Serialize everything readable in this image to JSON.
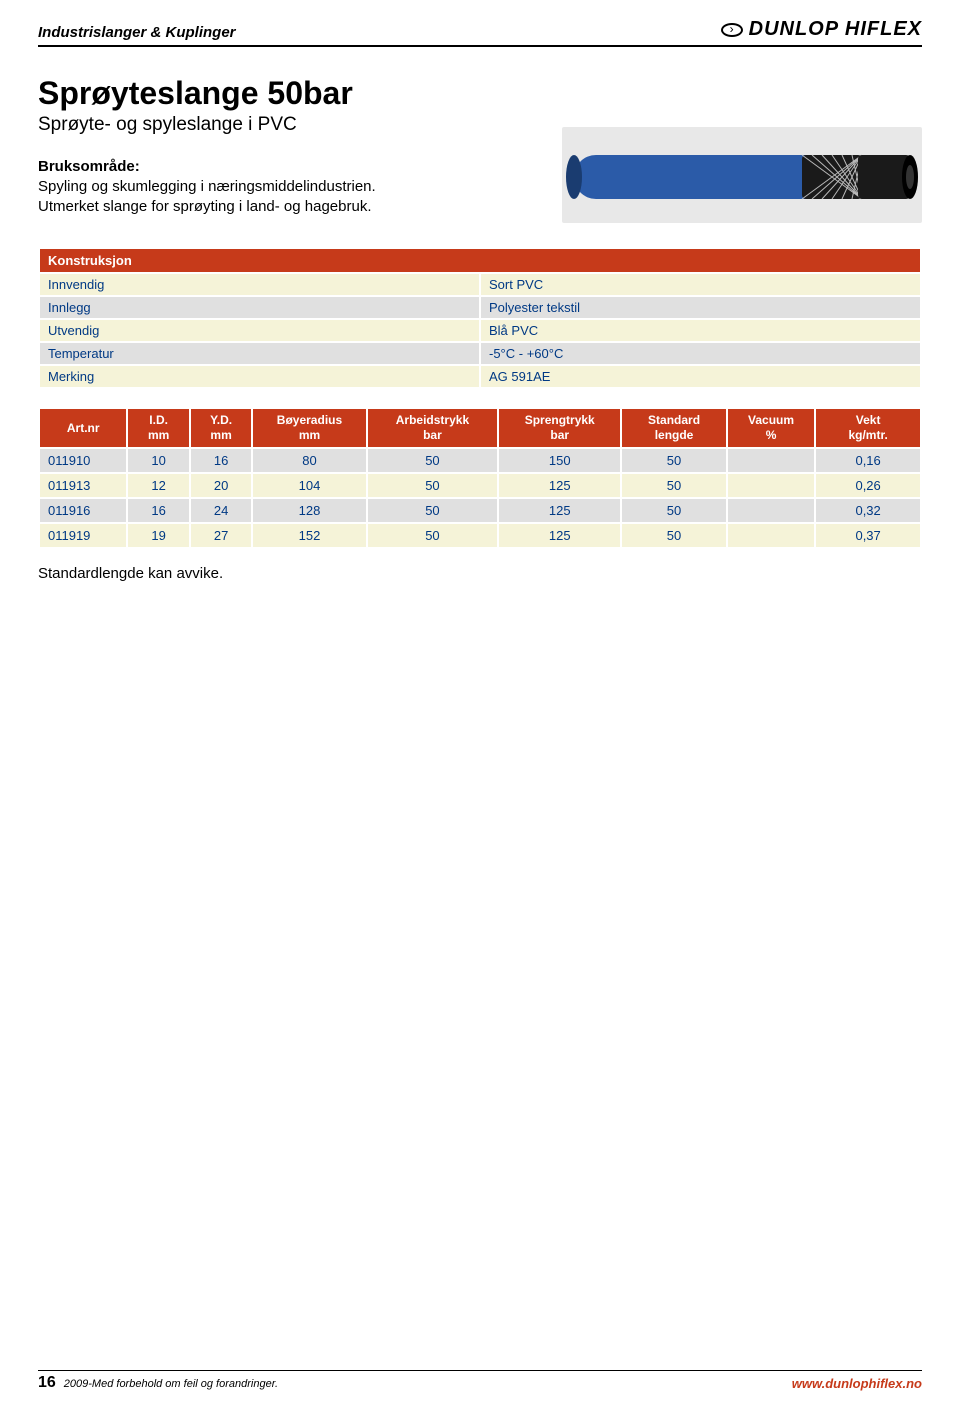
{
  "header": {
    "section": "Industrislanger & Kuplinger",
    "brand": "DUNLOP HIFLEX"
  },
  "title": "Sprøyteslange 50bar",
  "subtitle": "Sprøyte- og spyleslange i PVC",
  "usage_label": "Bruksområde:",
  "usage_text": "Spyling og skumlegging i næringsmiddelindustrien. Utmerket slange for sprøyting i land- og hagebruk.",
  "hose_graphic": {
    "outer_color": "#2b5ba8",
    "inner_color": "#1a1a1a",
    "mesh_color": "#b8b8b8",
    "bg": "#e8e8e8"
  },
  "construction": {
    "header": "Konstruksjon",
    "rows": [
      {
        "label": "Innvendig",
        "value": "Sort PVC",
        "cls": "row-a"
      },
      {
        "label": "Innlegg",
        "value": "Polyester tekstil",
        "cls": "row-b"
      },
      {
        "label": "Utvendig",
        "value": "Blå PVC",
        "cls": "row-a"
      },
      {
        "label": "Temperatur",
        "value": "-5°C - +60°C",
        "cls": "row-b"
      },
      {
        "label": "Merking",
        "value": "AG  591AE",
        "cls": "row-a"
      }
    ],
    "colors": {
      "header_bg": "#c63a1a",
      "header_fg": "#ffffff",
      "row_a_bg": "#f5f3d8",
      "row_b_bg": "#e0e0e0",
      "text": "#003984"
    }
  },
  "data": {
    "columns": [
      "Art.nr",
      "I.D.\nmm",
      "Y.D.\nmm",
      "Bøyeradius\nmm",
      "Arbeidstrykk\nbar",
      "Sprengtrykk\nbar",
      "Standard\nlengde",
      "Vacuum\n%",
      "Vekt\nkg/mtr."
    ],
    "col_widths": [
      "10%",
      "7%",
      "7%",
      "13%",
      "15%",
      "14%",
      "12%",
      "10%",
      "12%"
    ],
    "rows": [
      [
        "011910",
        "10",
        "16",
        "80",
        "50",
        "150",
        "50",
        "",
        "0,16"
      ],
      [
        "011913",
        "12",
        "20",
        "104",
        "50",
        "125",
        "50",
        "",
        "0,26"
      ],
      [
        "011916",
        "16",
        "24",
        "128",
        "50",
        "125",
        "50",
        "",
        "0,32"
      ],
      [
        "011919",
        "19",
        "27",
        "152",
        "50",
        "125",
        "50",
        "",
        "0,37"
      ]
    ],
    "row_classes": [
      "row-b",
      "row-a",
      "row-b",
      "row-a"
    ],
    "colors": {
      "header_bg": "#c63a1a",
      "header_fg": "#ffffff",
      "row_a_bg": "#f5f3d8",
      "row_b_bg": "#e0e0e0",
      "text": "#003984"
    }
  },
  "footnote": "Standardlengde kan avvike.",
  "footer": {
    "page": "16",
    "note": "2009-Med forbehold om feil og forandringer.",
    "url": "www.dunlophiflex.no"
  }
}
